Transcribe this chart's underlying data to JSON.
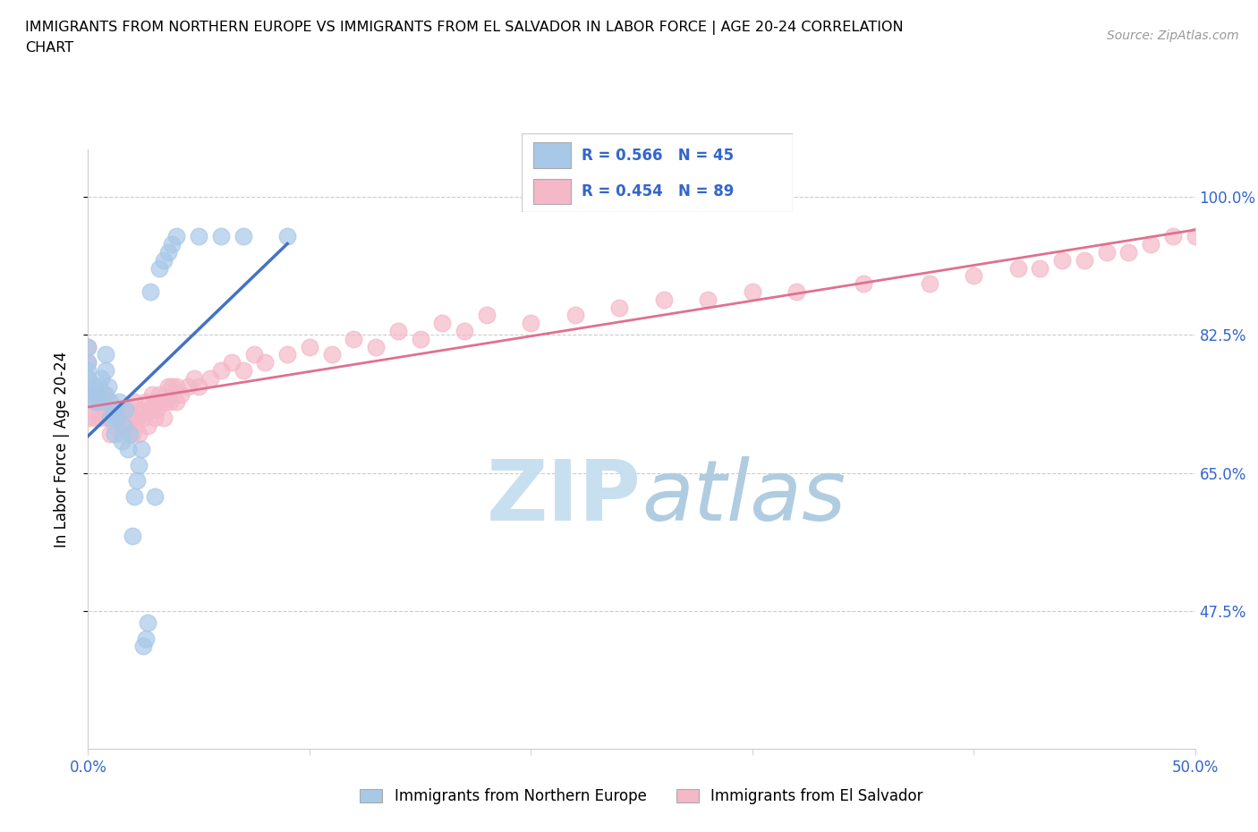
{
  "title_line1": "IMMIGRANTS FROM NORTHERN EUROPE VS IMMIGRANTS FROM EL SALVADOR IN LABOR FORCE | AGE 20-24 CORRELATION",
  "title_line2": "CHART",
  "source_text": "Source: ZipAtlas.com",
  "ylabel": "In Labor Force | Age 20-24",
  "xlim": [
    0.0,
    0.5
  ],
  "ylim": [
    0.3,
    1.06
  ],
  "xtick_positions": [
    0.0,
    0.1,
    0.2,
    0.3,
    0.4,
    0.5
  ],
  "xticklabels": [
    "0.0%",
    "",
    "",
    "",
    "",
    "50.0%"
  ],
  "ytick_positions": [
    0.475,
    0.65,
    0.825,
    1.0
  ],
  "ytick_labels": [
    "47.5%",
    "65.0%",
    "82.5%",
    "100.0%"
  ],
  "R_blue": 0.566,
  "N_blue": 45,
  "R_pink": 0.454,
  "N_pink": 89,
  "color_blue": "#a8c8e8",
  "color_pink": "#f4b8c8",
  "line_blue": "#4472c4",
  "line_pink": "#e07090",
  "watermark_zip": "ZIP",
  "watermark_atlas": "atlas",
  "watermark_color_zip": "#c8dff0",
  "watermark_color_atlas": "#b0cce0",
  "legend_label_blue": "Immigrants from Northern Europe",
  "legend_label_pink": "Immigrants from El Salvador",
  "blue_x": [
    0.0,
    0.0,
    0.0,
    0.0,
    0.0,
    0.003,
    0.003,
    0.004,
    0.005,
    0.005,
    0.006,
    0.007,
    0.008,
    0.008,
    0.009,
    0.01,
    0.01,
    0.011,
    0.012,
    0.013,
    0.014,
    0.015,
    0.016,
    0.017,
    0.018,
    0.019,
    0.02,
    0.021,
    0.022,
    0.023,
    0.024,
    0.025,
    0.026,
    0.027,
    0.028,
    0.03,
    0.032,
    0.034,
    0.036,
    0.038,
    0.04,
    0.05,
    0.06,
    0.07,
    0.09
  ],
  "blue_y": [
    0.75,
    0.77,
    0.78,
    0.79,
    0.81,
    0.74,
    0.76,
    0.75,
    0.74,
    0.76,
    0.77,
    0.75,
    0.78,
    0.8,
    0.76,
    0.72,
    0.74,
    0.73,
    0.7,
    0.72,
    0.74,
    0.69,
    0.71,
    0.73,
    0.68,
    0.7,
    0.57,
    0.62,
    0.64,
    0.66,
    0.68,
    0.43,
    0.44,
    0.46,
    0.88,
    0.62,
    0.91,
    0.92,
    0.93,
    0.94,
    0.95,
    0.95,
    0.95,
    0.95,
    0.95
  ],
  "pink_x": [
    0.0,
    0.0,
    0.0,
    0.0,
    0.0,
    0.0,
    0.0,
    0.003,
    0.004,
    0.005,
    0.005,
    0.006,
    0.007,
    0.008,
    0.008,
    0.009,
    0.01,
    0.01,
    0.011,
    0.012,
    0.013,
    0.014,
    0.015,
    0.016,
    0.017,
    0.018,
    0.019,
    0.02,
    0.02,
    0.021,
    0.022,
    0.023,
    0.024,
    0.025,
    0.026,
    0.027,
    0.028,
    0.029,
    0.03,
    0.03,
    0.031,
    0.032,
    0.033,
    0.034,
    0.035,
    0.036,
    0.037,
    0.038,
    0.04,
    0.04,
    0.042,
    0.045,
    0.048,
    0.05,
    0.055,
    0.06,
    0.065,
    0.07,
    0.075,
    0.08,
    0.09,
    0.1,
    0.11,
    0.12,
    0.13,
    0.14,
    0.15,
    0.16,
    0.17,
    0.18,
    0.2,
    0.22,
    0.24,
    0.26,
    0.28,
    0.3,
    0.32,
    0.35,
    0.38,
    0.4,
    0.42,
    0.43,
    0.44,
    0.45,
    0.46,
    0.47,
    0.48,
    0.49,
    0.5
  ],
  "pink_y": [
    0.72,
    0.74,
    0.75,
    0.76,
    0.77,
    0.79,
    0.81,
    0.72,
    0.74,
    0.72,
    0.75,
    0.74,
    0.73,
    0.72,
    0.75,
    0.73,
    0.7,
    0.73,
    0.72,
    0.71,
    0.73,
    0.72,
    0.7,
    0.72,
    0.73,
    0.71,
    0.73,
    0.7,
    0.72,
    0.74,
    0.72,
    0.7,
    0.73,
    0.72,
    0.74,
    0.71,
    0.73,
    0.75,
    0.72,
    0.74,
    0.73,
    0.75,
    0.74,
    0.72,
    0.74,
    0.76,
    0.74,
    0.76,
    0.74,
    0.76,
    0.75,
    0.76,
    0.77,
    0.76,
    0.77,
    0.78,
    0.79,
    0.78,
    0.8,
    0.79,
    0.8,
    0.81,
    0.8,
    0.82,
    0.81,
    0.83,
    0.82,
    0.84,
    0.83,
    0.85,
    0.84,
    0.85,
    0.86,
    0.87,
    0.87,
    0.88,
    0.88,
    0.89,
    0.89,
    0.9,
    0.91,
    0.91,
    0.92,
    0.92,
    0.93,
    0.93,
    0.94,
    0.95,
    0.95
  ]
}
